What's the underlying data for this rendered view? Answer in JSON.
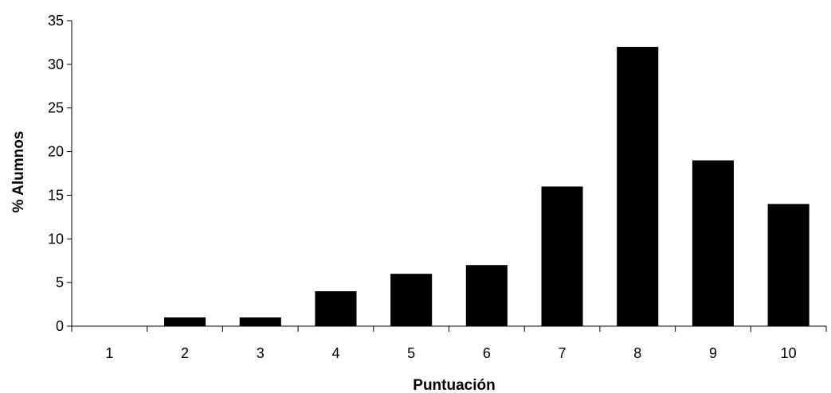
{
  "chart_data": {
    "type": "bar",
    "categories": [
      "1",
      "2",
      "3",
      "4",
      "5",
      "6",
      "7",
      "8",
      "9",
      "10"
    ],
    "values": [
      0,
      1,
      1,
      4,
      6,
      7,
      16,
      32,
      19,
      14
    ],
    "title": "",
    "xlabel": "Puntuación",
    "ylabel": "% Alumnos",
    "ylim": [
      0,
      35
    ],
    "yticks": [
      0,
      5,
      10,
      15,
      20,
      25,
      30,
      35
    ],
    "bar_color": "#000000",
    "grid": false,
    "legend": "none"
  }
}
